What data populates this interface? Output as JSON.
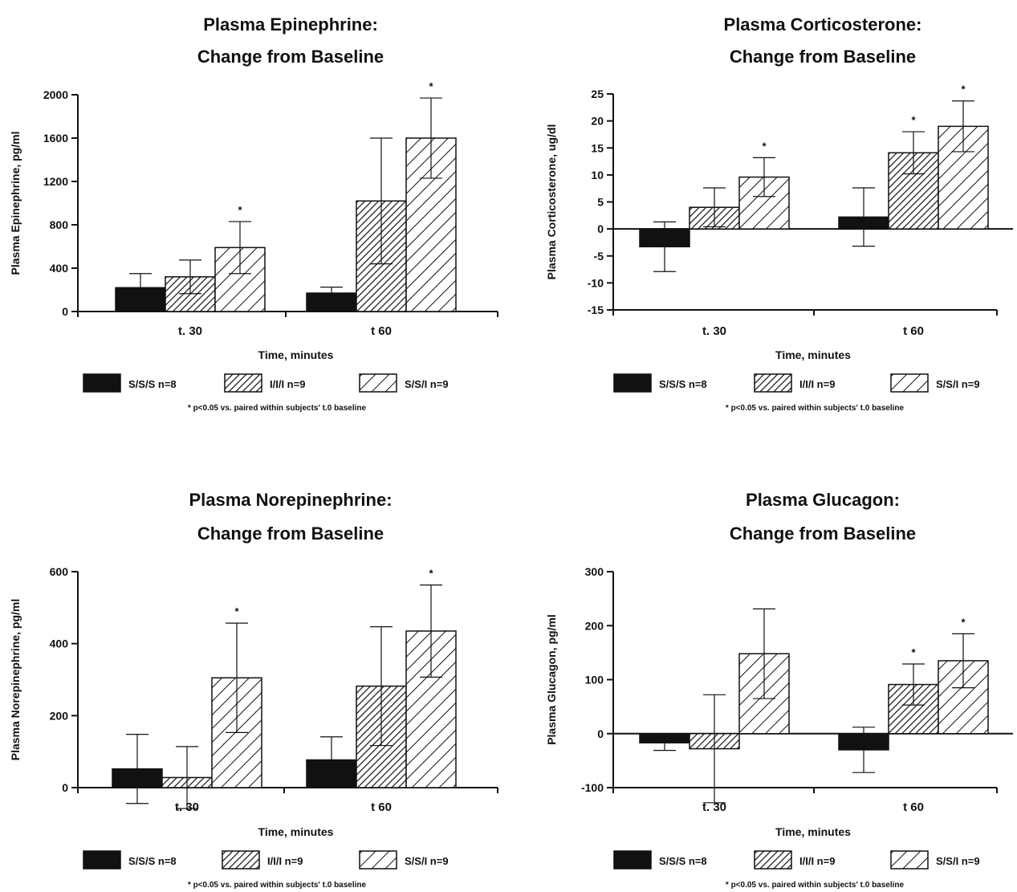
{
  "chart_data": [
    {
      "type": "bar",
      "title": [
        "Plasma Epinephrine:",
        "Change from Baseline"
      ],
      "xlabel": "Time, minutes",
      "ylabel": "Plasma Epinephrine, pg/ml",
      "ylim": [
        0,
        2000
      ],
      "yticks": [
        0,
        400,
        800,
        1200,
        1600,
        2000
      ],
      "categories": [
        "t. 30",
        "t 60"
      ],
      "series": [
        {
          "name": "S/S/S  n=8",
          "pattern": "solid",
          "values": [
            220,
            170
          ],
          "error": [
            130,
            55
          ],
          "significant": [
            false,
            false
          ]
        },
        {
          "name": "I/I/I n=9",
          "pattern": "dense-hatch",
          "values": [
            320,
            1020
          ],
          "error": [
            155,
            580
          ],
          "significant": [
            false,
            false
          ]
        },
        {
          "name": "S/S/I  n=9",
          "pattern": "sparse-hatch",
          "values": [
            590,
            1600
          ],
          "error": [
            240,
            370
          ],
          "significant": [
            true,
            true
          ]
        }
      ],
      "legend_position": "bottom",
      "note": "* p<0.05 vs. paired within subjects' t.0 baseline",
      "significance_mark": "*"
    },
    {
      "type": "bar",
      "title": [
        "Plasma Corticosterone:",
        "Change from Baseline"
      ],
      "xlabel": "Time, minutes",
      "ylabel": "Plasma Corticosterone, ug/dl",
      "ylim": [
        -15,
        25
      ],
      "yticks": [
        -15,
        -10,
        -5,
        0,
        5,
        10,
        15,
        20,
        25
      ],
      "categories": [
        "t. 30",
        "t 60"
      ],
      "series": [
        {
          "name": "S/S/S  n=8",
          "pattern": "solid",
          "values": [
            -3.3,
            2.2
          ],
          "error": [
            4.6,
            5.4
          ],
          "significant": [
            false,
            false
          ]
        },
        {
          "name": "I/I/I n=9",
          "pattern": "dense-hatch",
          "values": [
            4,
            14.1
          ],
          "error": [
            3.6,
            3.9
          ],
          "significant": [
            false,
            true
          ]
        },
        {
          "name": "S/S/I  n=9",
          "pattern": "sparse-hatch",
          "values": [
            9.6,
            19
          ],
          "error": [
            3.6,
            4.7
          ],
          "significant": [
            true,
            true
          ]
        }
      ],
      "legend_position": "bottom",
      "note": "* p<0.05 vs. paired within subjects' t.0 baseline",
      "significance_mark": "*"
    },
    {
      "type": "bar",
      "title": [
        "Plasma Norepinephrine:",
        "Change from Baseline"
      ],
      "xlabel": "Time, minutes",
      "ylabel": "Plasma Norepinephrine, pg/ml",
      "ylim": [
        0,
        600
      ],
      "yticks": [
        0,
        200,
        400,
        600
      ],
      "categories": [
        "t. 30",
        "t 60"
      ],
      "series": [
        {
          "name": "S/S/S  n=8",
          "pattern": "solid",
          "values": [
            52,
            77
          ],
          "error": [
            96,
            64
          ],
          "significant": [
            false,
            false
          ]
        },
        {
          "name": "I/I/I n=9",
          "pattern": "dense-hatch",
          "values": [
            28,
            282
          ],
          "error": [
            86,
            165
          ],
          "significant": [
            false,
            false
          ]
        },
        {
          "name": "S/S/I  n=9",
          "pattern": "sparse-hatch",
          "values": [
            305,
            435
          ],
          "error": [
            152,
            128
          ],
          "significant": [
            true,
            true
          ]
        }
      ],
      "legend_position": "bottom",
      "note": "* p<0.05 vs. paired within subjects' t.0 baseline",
      "significance_mark": "*"
    },
    {
      "type": "bar",
      "title": [
        "Plasma Glucagon:",
        "Change from Baseline"
      ],
      "xlabel": "Time, minutes",
      "ylabel": "Plasma Glucagon, pg/ml",
      "ylim": [
        -100,
        300
      ],
      "yticks": [
        -100,
        0,
        100,
        200,
        300
      ],
      "categories": [
        "t. 30",
        "t 60"
      ],
      "series": [
        {
          "name": "S/S/S  n=8",
          "pattern": "solid",
          "values": [
            -17,
            -30
          ],
          "error": [
            14,
            42
          ],
          "significant": [
            false,
            false
          ]
        },
        {
          "name": "I/I/I n=9",
          "pattern": "dense-hatch",
          "values": [
            -28,
            91
          ],
          "error": [
            100,
            38
          ],
          "significant": [
            false,
            true
          ]
        },
        {
          "name": "S/S/I  n=9",
          "pattern": "sparse-hatch",
          "values": [
            148,
            135
          ],
          "error": [
            83,
            50
          ],
          "significant": [
            false,
            true
          ]
        }
      ],
      "legend_position": "bottom",
      "note": "* p<0.05 vs. paired within subjects' t.0 baseline",
      "significance_mark": "*"
    }
  ]
}
